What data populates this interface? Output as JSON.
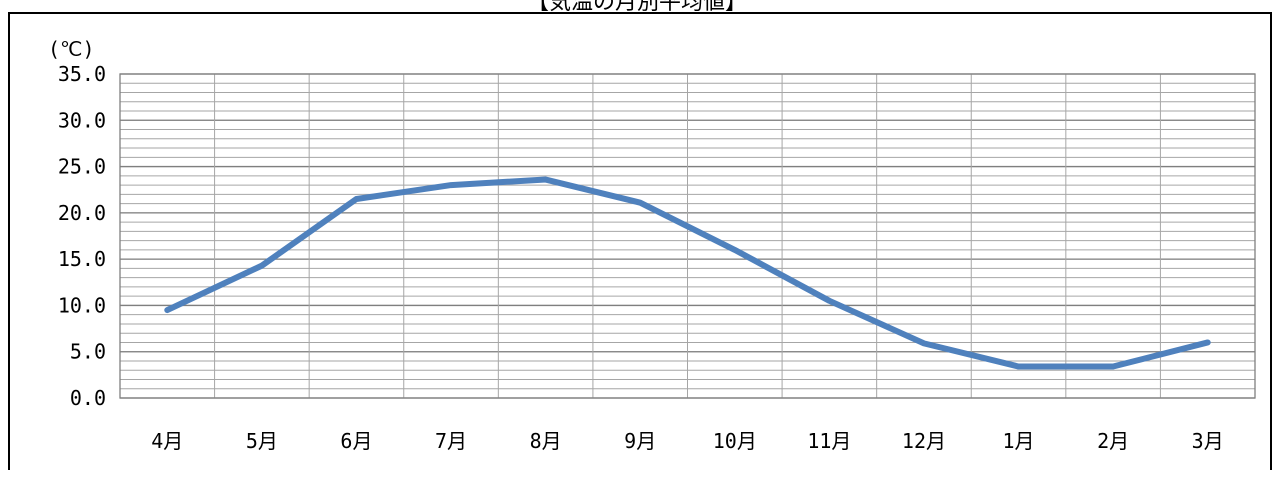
{
  "page": {
    "title": "【気温の月別平均値】"
  },
  "chart_data": {
    "type": "line",
    "title": "【気温の月別平均値】",
    "ylabel": "(℃)",
    "xlabel": "",
    "categories": [
      "4月",
      "5月",
      "6月",
      "7月",
      "8月",
      "9月",
      "10月",
      "11月",
      "12月",
      "1月",
      "2月",
      "3月"
    ],
    "y_tick_labels": [
      "0.0",
      "5.0",
      "10.0",
      "15.0",
      "20.0",
      "25.0",
      "30.0",
      "35.0"
    ],
    "ylim": [
      0,
      35
    ],
    "y_major_step": 5,
    "y_minor_step": 1,
    "grid": true,
    "series": [
      {
        "values": [
          9.5,
          14.3,
          21.5,
          23.0,
          23.6,
          21.1,
          16.0,
          10.5,
          5.9,
          3.4,
          3.4,
          6.0
        ],
        "color": "#4f81bd"
      }
    ]
  }
}
